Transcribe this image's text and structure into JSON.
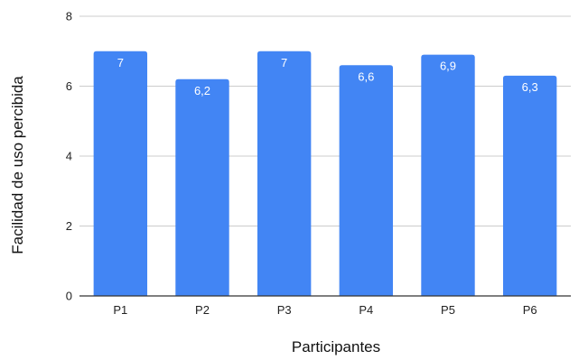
{
  "chart_data": {
    "type": "bar",
    "title": "",
    "xlabel": "Participantes",
    "ylabel": "Facilidad de uso percibida",
    "categories": [
      "P1",
      "P2",
      "P3",
      "P4",
      "P5",
      "P6"
    ],
    "values": [
      7,
      6.2,
      7,
      6.6,
      6.9,
      6.3
    ],
    "data_labels": [
      "7",
      "6,2",
      "7",
      "6,6",
      "6,9",
      "6,3"
    ],
    "y_ticks": [
      0,
      2,
      4,
      6,
      8
    ],
    "y_tick_labels": [
      "0",
      "2",
      "4",
      "6",
      "8"
    ],
    "ylim": [
      0,
      8
    ],
    "grid": true,
    "legend": "none",
    "colors": {
      "bar": "#4285F4",
      "grid": "#cccccc",
      "axis": "#333333"
    }
  }
}
